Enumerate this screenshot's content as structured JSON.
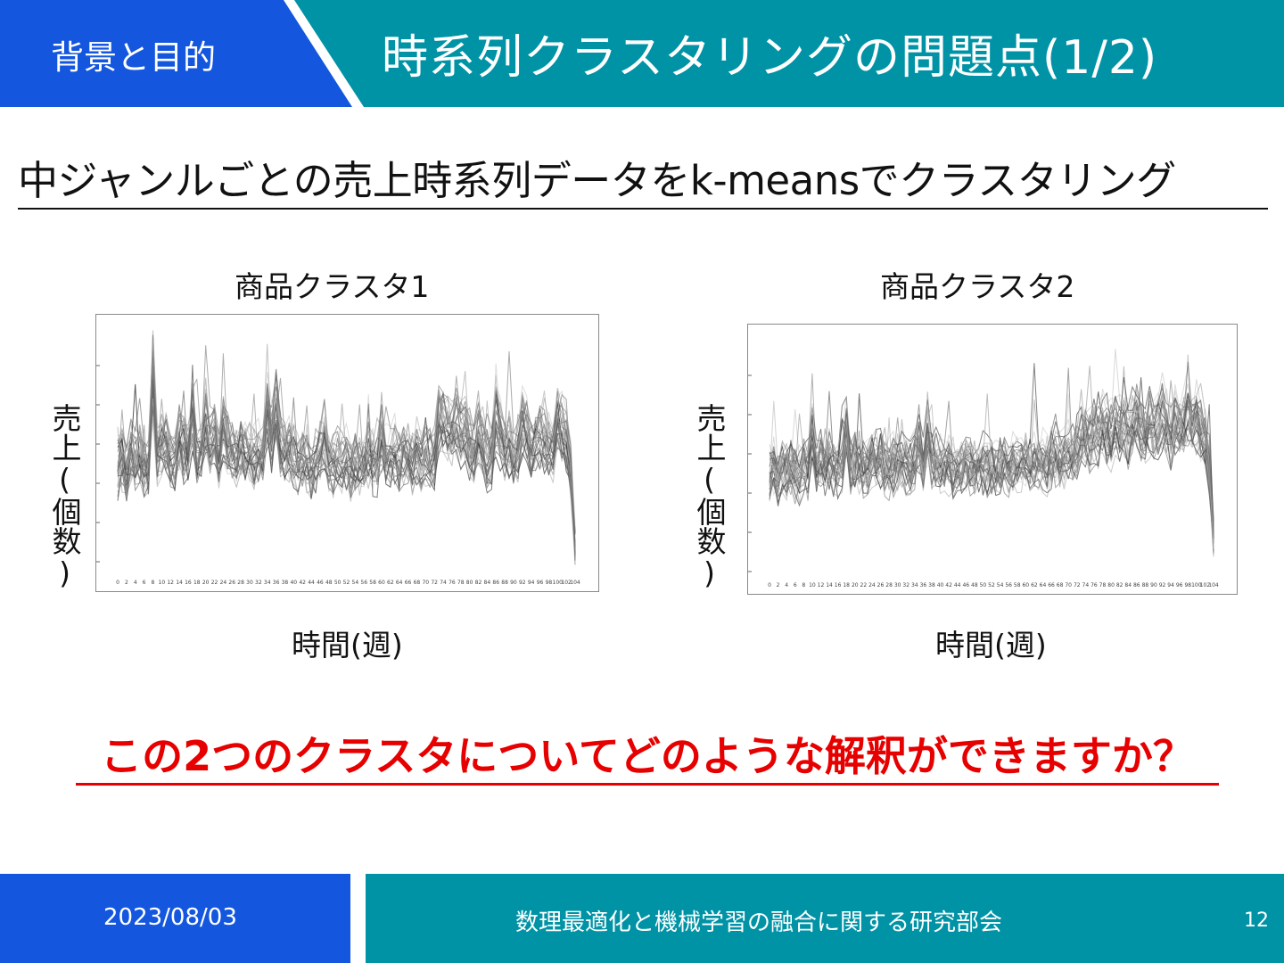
{
  "header": {
    "section_label": "背景と目的",
    "title": "時系列クラスタリングの問題点(1/2)"
  },
  "subtitle": "中ジャンルごとの売上時系列データをk-meansでクラスタリング",
  "charts": [
    {
      "title": "商品クラスタ1",
      "ylabel": "売上(個数)",
      "xlabel": "時間(週)"
    },
    {
      "title": "商品クラスタ2",
      "ylabel": "売上(個数)",
      "xlabel": "時間(週)"
    }
  ],
  "chart_data": [
    {
      "type": "line",
      "title": "商品クラスタ1",
      "xlabel": "時間(週)",
      "ylabel": "売上(個数)",
      "x_ticks": [
        "0",
        "2",
        "4",
        "6",
        "8",
        "10",
        "12",
        "14",
        "16",
        "18",
        "20",
        "22",
        "24",
        "26",
        "28",
        "30",
        "32",
        "34",
        "36",
        "38",
        "40",
        "42",
        "44",
        "46",
        "48",
        "50",
        "52",
        "54",
        "56",
        "58",
        "60",
        "62",
        "64",
        "66",
        "68",
        "70",
        "72",
        "74",
        "76",
        "78",
        "80",
        "82",
        "84",
        "86",
        "88",
        "90",
        "92",
        "94",
        "96",
        "98",
        "100",
        "102",
        "104"
      ],
      "xlim": [
        0,
        104
      ],
      "series_count_estimate": 30,
      "representative_profile": [
        0.42,
        0.45,
        0.4,
        0.48,
        0.44,
        0.46,
        0.43,
        0.41,
        0.78,
        0.46,
        0.5,
        0.52,
        0.47,
        0.44,
        0.55,
        0.5,
        0.48,
        0.62,
        0.47,
        0.49,
        0.6,
        0.52,
        0.56,
        0.45,
        0.58,
        0.52,
        0.47,
        0.45,
        0.5,
        0.46,
        0.48,
        0.46,
        0.45,
        0.46,
        0.65,
        0.55,
        0.68,
        0.5,
        0.48,
        0.49,
        0.46,
        0.42,
        0.45,
        0.44,
        0.4,
        0.44,
        0.48,
        0.55,
        0.44,
        0.42,
        0.45,
        0.43,
        0.46,
        0.4,
        0.44,
        0.43,
        0.42,
        0.47,
        0.44,
        0.42,
        0.54,
        0.46,
        0.45,
        0.47,
        0.44,
        0.48,
        0.46,
        0.44,
        0.45,
        0.43,
        0.47,
        0.45,
        0.46,
        0.62,
        0.6,
        0.58,
        0.56,
        0.6,
        0.55,
        0.58,
        0.52,
        0.48,
        0.55,
        0.5,
        0.46,
        0.45,
        0.62,
        0.55,
        0.5,
        0.52,
        0.45,
        0.5,
        0.6,
        0.56,
        0.48,
        0.5,
        0.55,
        0.52,
        0.5,
        0.48,
        0.6,
        0.58,
        0.55,
        0.4,
        0.1
      ],
      "grid": false,
      "legend": "none"
    },
    {
      "type": "line",
      "title": "商品クラスタ2",
      "xlabel": "時間(週)",
      "ylabel": "売上(個数)",
      "x_ticks": [
        "0",
        "2",
        "4",
        "6",
        "8",
        "10",
        "12",
        "14",
        "16",
        "18",
        "20",
        "22",
        "24",
        "26",
        "28",
        "30",
        "32",
        "34",
        "36",
        "38",
        "40",
        "42",
        "44",
        "46",
        "48",
        "50",
        "52",
        "54",
        "56",
        "58",
        "60",
        "62",
        "64",
        "66",
        "68",
        "70",
        "72",
        "74",
        "76",
        "78",
        "80",
        "82",
        "84",
        "86",
        "88",
        "90",
        "92",
        "94",
        "96",
        "98",
        "100",
        "102",
        "104"
      ],
      "xlim": [
        0,
        104
      ],
      "series_count_estimate": 30,
      "representative_profile": [
        0.42,
        0.44,
        0.4,
        0.45,
        0.43,
        0.44,
        0.42,
        0.4,
        0.46,
        0.44,
        0.58,
        0.45,
        0.47,
        0.44,
        0.48,
        0.45,
        0.44,
        0.46,
        0.62,
        0.45,
        0.48,
        0.46,
        0.44,
        0.45,
        0.5,
        0.47,
        0.48,
        0.46,
        0.44,
        0.45,
        0.47,
        0.46,
        0.45,
        0.44,
        0.46,
        0.55,
        0.45,
        0.58,
        0.48,
        0.47,
        0.46,
        0.44,
        0.45,
        0.43,
        0.44,
        0.45,
        0.46,
        0.45,
        0.44,
        0.47,
        0.46,
        0.45,
        0.44,
        0.43,
        0.46,
        0.45,
        0.44,
        0.46,
        0.45,
        0.47,
        0.48,
        0.46,
        0.47,
        0.48,
        0.46,
        0.45,
        0.48,
        0.5,
        0.47,
        0.48,
        0.5,
        0.49,
        0.52,
        0.55,
        0.58,
        0.56,
        0.6,
        0.58,
        0.62,
        0.6,
        0.57,
        0.63,
        0.59,
        0.65,
        0.58,
        0.62,
        0.66,
        0.6,
        0.58,
        0.64,
        0.62,
        0.6,
        0.66,
        0.62,
        0.58,
        0.63,
        0.6,
        0.64,
        0.68,
        0.62,
        0.66,
        0.6,
        0.55,
        0.45,
        0.15
      ],
      "grid": false,
      "legend": "none"
    }
  ],
  "question": "この2つのクラスタについてどのような解釈ができますか？",
  "footer": {
    "date": "2023/08/03",
    "organization": "数理最適化と機械学習の融合に関する研究部会",
    "page": "12"
  }
}
